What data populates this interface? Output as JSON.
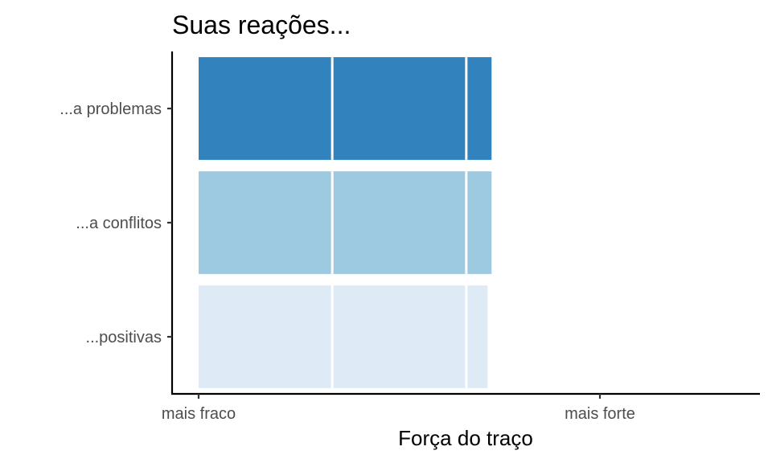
{
  "chart_data": {
    "type": "bar",
    "orientation": "horizontal",
    "title": "Suas reações...",
    "xlabel": "Força do traço",
    "ylabel": "",
    "categories": [
      "...a problemas",
      "...a conflitos",
      "...positivas"
    ],
    "values": [
      0.73,
      0.73,
      0.72
    ],
    "colors": [
      "#3182bd",
      "#9ecae1",
      "#deebf7"
    ],
    "segment_dividers": [
      0.333,
      0.667
    ],
    "xlim": [
      -0.07,
      1.4
    ],
    "x_ticks": [
      {
        "value": 0,
        "label": "mais fraco"
      },
      {
        "value": 1,
        "label": "mais forte"
      }
    ],
    "grid": false,
    "legend": "none"
  }
}
